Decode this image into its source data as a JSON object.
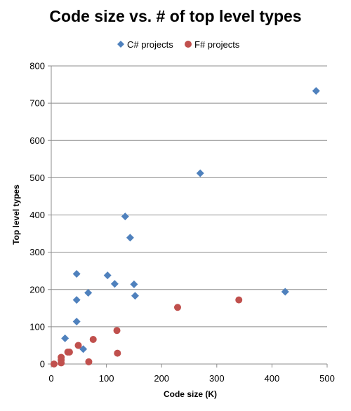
{
  "chart_data": {
    "type": "scatter",
    "title": "Code size vs. # of top level types",
    "xlabel": "Code size (K)",
    "ylabel": "Top level types",
    "xlim": [
      0,
      500
    ],
    "ylim": [
      0,
      800
    ],
    "xticks": [
      0,
      100,
      200,
      300,
      400,
      500
    ],
    "yticks": [
      0,
      100,
      200,
      300,
      400,
      500,
      600,
      700,
      800
    ],
    "grid": "horizontal",
    "legend": "top",
    "series": [
      {
        "name": "C# projects",
        "marker": "diamond",
        "color": "#4F81BD",
        "points": [
          [
            25,
            69
          ],
          [
            46,
            114
          ],
          [
            46,
            172
          ],
          [
            46,
            242
          ],
          [
            58,
            40
          ],
          [
            67,
            191
          ],
          [
            102,
            238
          ],
          [
            115,
            215
          ],
          [
            134,
            396
          ],
          [
            143,
            339
          ],
          [
            150,
            214
          ],
          [
            152,
            183
          ],
          [
            270,
            512
          ],
          [
            424,
            194
          ],
          [
            480,
            733
          ]
        ]
      },
      {
        "name": "F# projects",
        "marker": "circle",
        "color": "#C0504D",
        "points": [
          [
            5,
            0
          ],
          [
            18,
            3
          ],
          [
            18,
            11
          ],
          [
            18,
            18
          ],
          [
            30,
            32
          ],
          [
            33,
            32
          ],
          [
            49,
            50
          ],
          [
            68,
            6
          ],
          [
            76,
            66
          ],
          [
            119,
            90
          ],
          [
            120,
            29
          ],
          [
            229,
            152
          ],
          [
            340,
            172
          ]
        ]
      }
    ]
  }
}
